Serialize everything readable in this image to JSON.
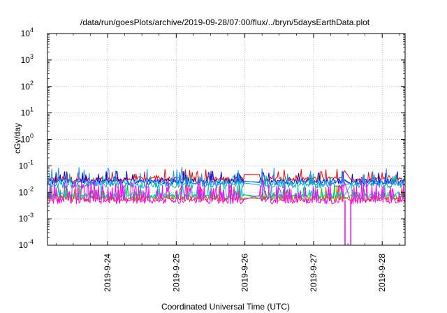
{
  "chart_data": {
    "type": "line",
    "title": "/data/run/goesPlots/archive/2019-09-28/07:00/flux/../bryn/5daysEarthData.plot",
    "xlabel": "Coordinated Universal Time (UTC)",
    "ylabel": "cGy/day",
    "yscale": "log",
    "ylim": [
      0.0001,
      10000
    ],
    "xlim": [
      "2019-09-23 03:00",
      "2019-09-28 08:00"
    ],
    "x_ticks": [
      "2019-9-24",
      "2019-9-25",
      "2019-9-26",
      "2019-9-27",
      "2019-9-28"
    ],
    "y_ticks": [
      {
        "base": "10",
        "exp": "-4"
      },
      {
        "base": "10",
        "exp": "-3"
      },
      {
        "base": "10",
        "exp": "-2"
      },
      {
        "base": "10",
        "exp": "-1"
      },
      {
        "base": "10",
        "exp": "0"
      },
      {
        "base": "10",
        "exp": "1"
      },
      {
        "base": "10",
        "exp": "2"
      },
      {
        "base": "10",
        "exp": "3"
      },
      {
        "base": "10",
        "exp": "4"
      }
    ],
    "grid": true,
    "data_gaps": [
      [
        "2019-09-26 00:00",
        "2019-09-26 05:00"
      ],
      [
        "2019-09-27 11:00",
        "2019-09-27 13:00"
      ]
    ],
    "series": [
      {
        "color": "#ff0000",
        "base": 0.03,
        "spike_max": 0.075
      },
      {
        "color": "#0000cc",
        "base": 0.025,
        "spike_max": 0.065
      },
      {
        "color": "#00b0b0",
        "base": 0.018,
        "spike_max": 0.05
      },
      {
        "color": "#1e90ff",
        "base": 0.022,
        "spike_max": 0.09
      },
      {
        "color": "#00cc00",
        "base": 0.0065,
        "spike_max": 0.02
      },
      {
        "color": "#cc5500",
        "base": 0.0055,
        "spike_max": 0.018
      },
      {
        "color": "#00cccc",
        "base": 0.0075,
        "spike_max": 0.022
      },
      {
        "color": "#ff00ff",
        "base": 0.0045,
        "spike_max": 0.03
      }
    ]
  }
}
